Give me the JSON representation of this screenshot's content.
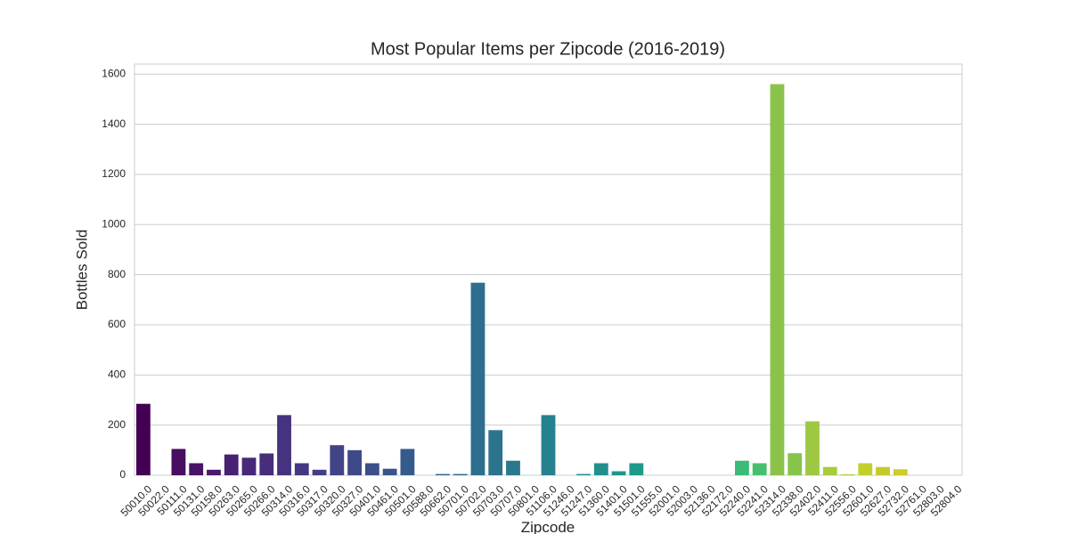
{
  "chart_data": {
    "type": "bar",
    "title": "Most Popular Items per Zipcode (2016-2019)",
    "x_label": "Zipcode",
    "y_label": "Bottles Sold",
    "categories": [
      "50010.0",
      "50022.0",
      "50111.0",
      "50131.0",
      "50158.0",
      "50263.0",
      "50265.0",
      "50266.0",
      "50314.0",
      "50316.0",
      "50317.0",
      "50320.0",
      "50327.0",
      "50401.0",
      "50461.0",
      "50501.0",
      "50588.0",
      "50662.0",
      "50701.0",
      "50702.0",
      "50703.0",
      "50707.0",
      "50801.0",
      "51106.0",
      "51246.0",
      "51247.0",
      "51360.0",
      "51401.0",
      "51501.0",
      "51555.0",
      "52001.0",
      "52003.0",
      "52136.0",
      "52172.0",
      "52240.0",
      "52241.0",
      "52314.0",
      "52338.0",
      "52402.0",
      "52411.0",
      "52556.0",
      "52601.0",
      "52627.0",
      "52732.0",
      "52761.0",
      "52803.0",
      "52804.0"
    ],
    "values": [
      285,
      0,
      105,
      48,
      22,
      83,
      70,
      87,
      240,
      48,
      22,
      120,
      100,
      48,
      26,
      105,
      0,
      5,
      5,
      768,
      180,
      58,
      0,
      240,
      0,
      5,
      48,
      16,
      48,
      0,
      0,
      0,
      0,
      0,
      58,
      48,
      1560,
      88,
      215,
      33,
      4,
      48,
      33,
      24,
      0,
      0,
      0
    ],
    "colors": [
      "#440154",
      "#46075a",
      "#470e61",
      "#481467",
      "#481b6d",
      "#482173",
      "#482878",
      "#472d7b",
      "#46337f",
      "#453882",
      "#433e85",
      "#414487",
      "#3e4989",
      "#3c4f8a",
      "#39548c",
      "#375a8c",
      "#345f8d",
      "#32648e",
      "#30698e",
      "#2e6e8e",
      "#2c738e",
      "#2a788e",
      "#287c8e",
      "#26818e",
      "#24868e",
      "#228b8d",
      "#21908d",
      "#1f958b",
      "#1f9a8a",
      "#1fa088",
      "#21a585",
      "#25ab82",
      "#2ab07f",
      "#32b67a",
      "#3bbb75",
      "#46c06f",
      "#8bc34a",
      "#86c44a",
      "#9fc842",
      "#a8cc3c",
      "#b0cf36",
      "#c2cf2c",
      "#c6c92c",
      "#cfcb2a",
      "#d8cf25",
      "#dfd51f",
      "#e8db1a"
    ],
    "ylim": [
      0,
      1640
    ],
    "yticks": [
      0,
      200,
      400,
      600,
      800,
      1000,
      1200,
      1400,
      1600
    ],
    "grid": true
  }
}
